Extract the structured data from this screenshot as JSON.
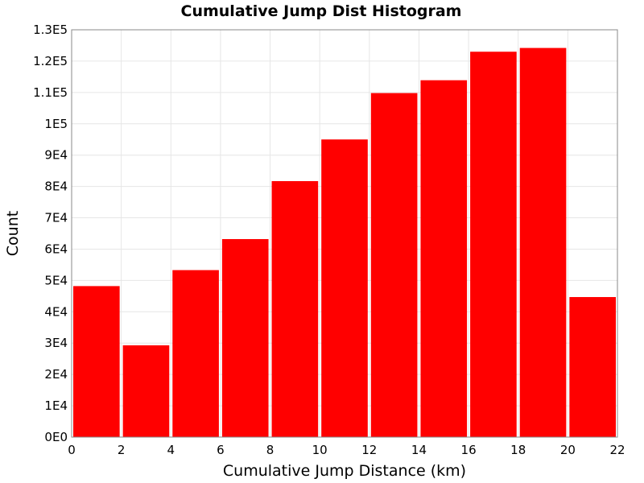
{
  "chart_data": {
    "type": "bar",
    "title": "Cumulative Jump Dist Histogram",
    "xlabel": "Cumulative Jump Distance (km)",
    "ylabel": "Count",
    "bins": [
      {
        "start": 0,
        "end": 2,
        "value": 48200
      },
      {
        "start": 2,
        "end": 4,
        "value": 29300
      },
      {
        "start": 4,
        "end": 6,
        "value": 53300
      },
      {
        "start": 6,
        "end": 8,
        "value": 63200
      },
      {
        "start": 8,
        "end": 10,
        "value": 81700
      },
      {
        "start": 10,
        "end": 12,
        "value": 95000
      },
      {
        "start": 12,
        "end": 14,
        "value": 109800
      },
      {
        "start": 14,
        "end": 16,
        "value": 113900
      },
      {
        "start": 16,
        "end": 18,
        "value": 123000
      },
      {
        "start": 18,
        "end": 20,
        "value": 124200
      },
      {
        "start": 20,
        "end": 22,
        "value": 44700
      }
    ],
    "xlim": [
      0,
      22
    ],
    "ylim": [
      0,
      130000
    ],
    "x_ticks": [
      "0",
      "2",
      "4",
      "6",
      "8",
      "10",
      "12",
      "14",
      "16",
      "18",
      "20",
      "22"
    ],
    "y_ticks": [
      "0E0",
      "1E4",
      "2E4",
      "3E4",
      "4E4",
      "5E4",
      "6E4",
      "7E4",
      "8E4",
      "9E4",
      "1E5",
      "1.1E5",
      "1.2E5",
      "1.3E5"
    ],
    "grid": true,
    "legend": "none",
    "bar_color": "#ff0000",
    "grid_color": "#e6e6e6",
    "plot_border_color": "#888888"
  }
}
